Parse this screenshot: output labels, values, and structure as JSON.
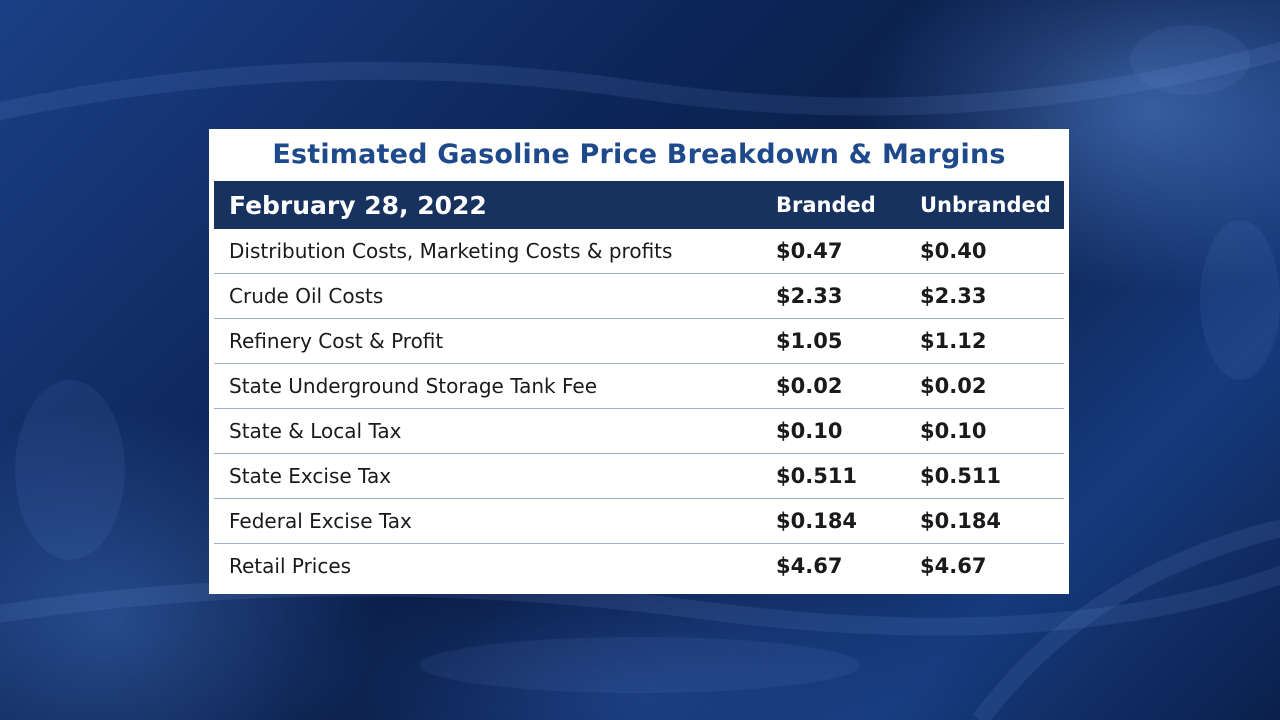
{
  "chart_data": {
    "type": "table",
    "title": "Estimated Gasoline Price Breakdown & Margins",
    "date_label": "February 28, 2022",
    "columns": [
      "Branded",
      "Unbranded"
    ],
    "rows": [
      {
        "label": "Distribution Costs, Marketing Costs & profits",
        "branded": "$0.47",
        "unbranded": "$0.40"
      },
      {
        "label": "Crude Oil Costs",
        "branded": "$2.33",
        "unbranded": "$2.33"
      },
      {
        "label": "Refinery Cost & Profit",
        "branded": "$1.05",
        "unbranded": "$1.12"
      },
      {
        "label": "State Underground Storage Tank Fee",
        "branded": "$0.02",
        "unbranded": "$0.02"
      },
      {
        "label": "State & Local Tax",
        "branded": "$0.10",
        "unbranded": "$0.10"
      },
      {
        "label": "State Excise Tax",
        "branded": "$0.511",
        "unbranded": "$0.511"
      },
      {
        "label": "Federal Excise Tax",
        "branded": "$0.184",
        "unbranded": "$0.184"
      },
      {
        "label": "Retail Prices",
        "branded": "$4.67",
        "unbranded": "$4.67"
      }
    ]
  },
  "colors": {
    "title_text": "#1e4a8c",
    "header_background": "#17325f",
    "row_divider": "#9bb0cc",
    "background": "#0d2659"
  }
}
